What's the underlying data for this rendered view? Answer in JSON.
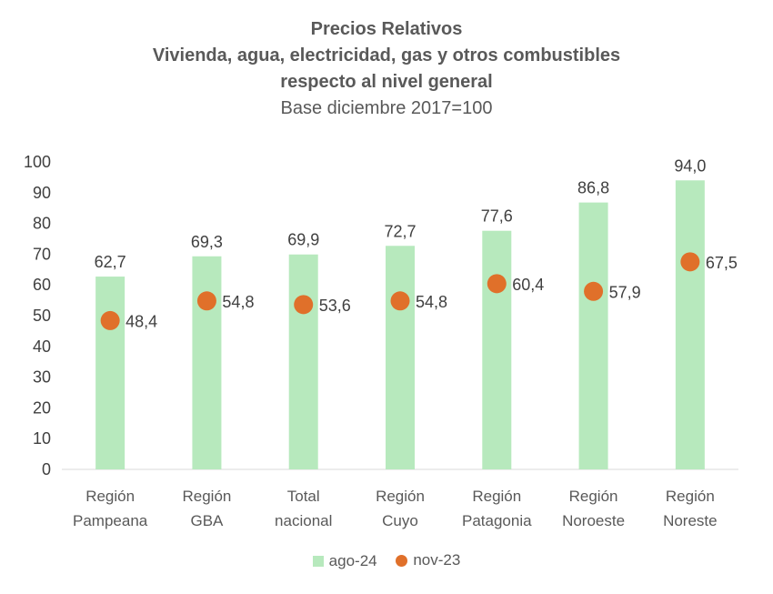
{
  "chart_data": {
    "type": "bar",
    "title": "Precios Relativos",
    "subtitle_lines": [
      "Vivienda, agua, electricidad, gas y otros combustibles",
      "respecto al nivel general",
      "Base diciembre 2017=100"
    ],
    "categories": [
      [
        "Región",
        "Pampeana"
      ],
      [
        "Región",
        "GBA"
      ],
      [
        "Total",
        "nacional"
      ],
      [
        "Región",
        "Cuyo"
      ],
      [
        "Región",
        "Patagonia"
      ],
      [
        "Región",
        "Noroeste"
      ],
      [
        "Región",
        "Noreste"
      ]
    ],
    "series": [
      {
        "name": "ago-24",
        "type": "bar",
        "color": "#b7e9bd",
        "values": [
          62.7,
          69.3,
          69.9,
          72.7,
          77.6,
          86.8,
          94.0
        ],
        "labels": [
          "62,7",
          "69,3",
          "69,9",
          "72,7",
          "77,6",
          "86,8",
          "94,0"
        ]
      },
      {
        "name": "nov-23",
        "type": "scatter",
        "color": "#e0702a",
        "values": [
          48.4,
          54.8,
          53.6,
          54.8,
          60.4,
          57.9,
          67.5
        ],
        "labels": [
          "48,4",
          "54,8",
          "53,6",
          "54,8",
          "60,4",
          "57,9",
          "67,5"
        ]
      }
    ],
    "ylim": [
      0,
      100
    ],
    "yticks": [
      0,
      10,
      20,
      30,
      40,
      50,
      60,
      70,
      80,
      90,
      100
    ],
    "grid": false,
    "legend_position": "bottom"
  }
}
